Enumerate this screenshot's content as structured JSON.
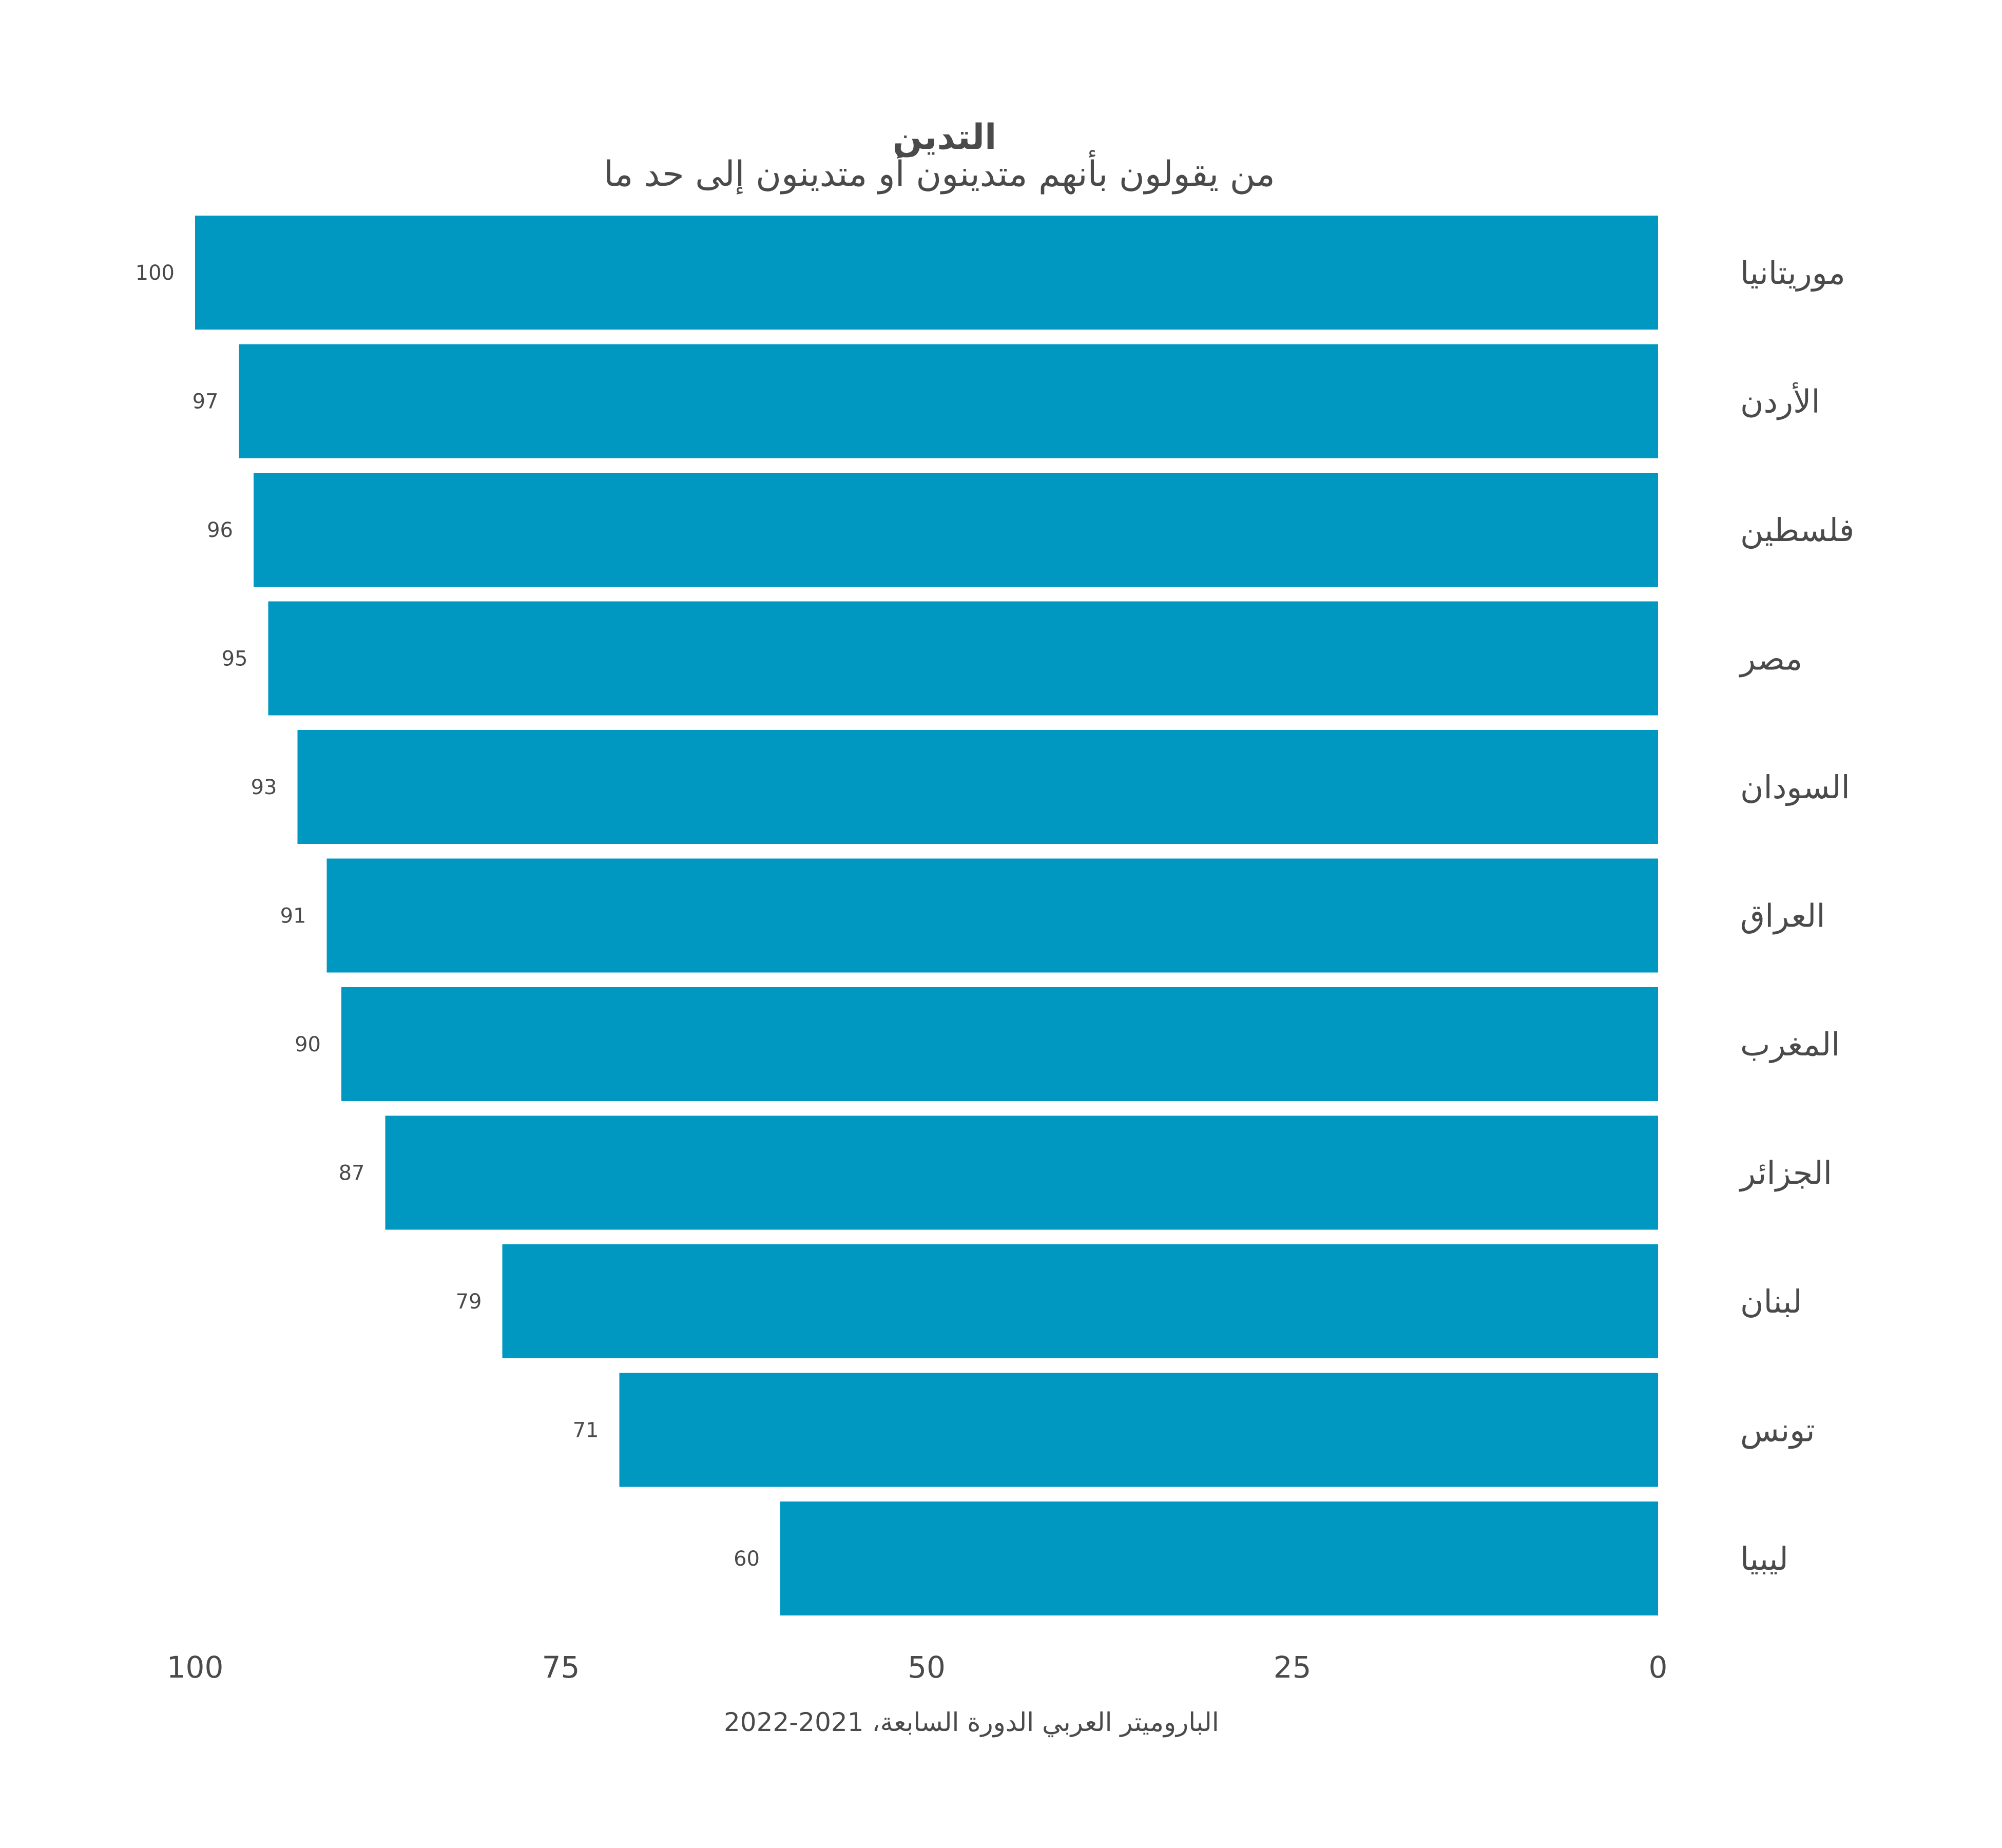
{
  "chart_data": {
    "type": "bar",
    "orientation": "horizontal",
    "x_axis_reversed": true,
    "title": "التدين",
    "subtitle": "من يقولون بأنهم متدينون أو متدينون إلى حد ما",
    "categories": [
      "موريتانيا",
      "الأردن",
      "فلسطين",
      "مصر",
      "السودان",
      "العراق",
      "المغرب",
      "الجزائر",
      "لبنان",
      "تونس",
      "ليبيا"
    ],
    "values": [
      100,
      97,
      96,
      95,
      93,
      91,
      90,
      87,
      79,
      71,
      60
    ],
    "xlim": [
      0,
      100
    ],
    "ticks": [
      100,
      75,
      50,
      25,
      0
    ],
    "grid": false,
    "bar_color": "#0097c1",
    "source": "الباروميتر العربي الدورة السابعة، 2021-2022"
  }
}
